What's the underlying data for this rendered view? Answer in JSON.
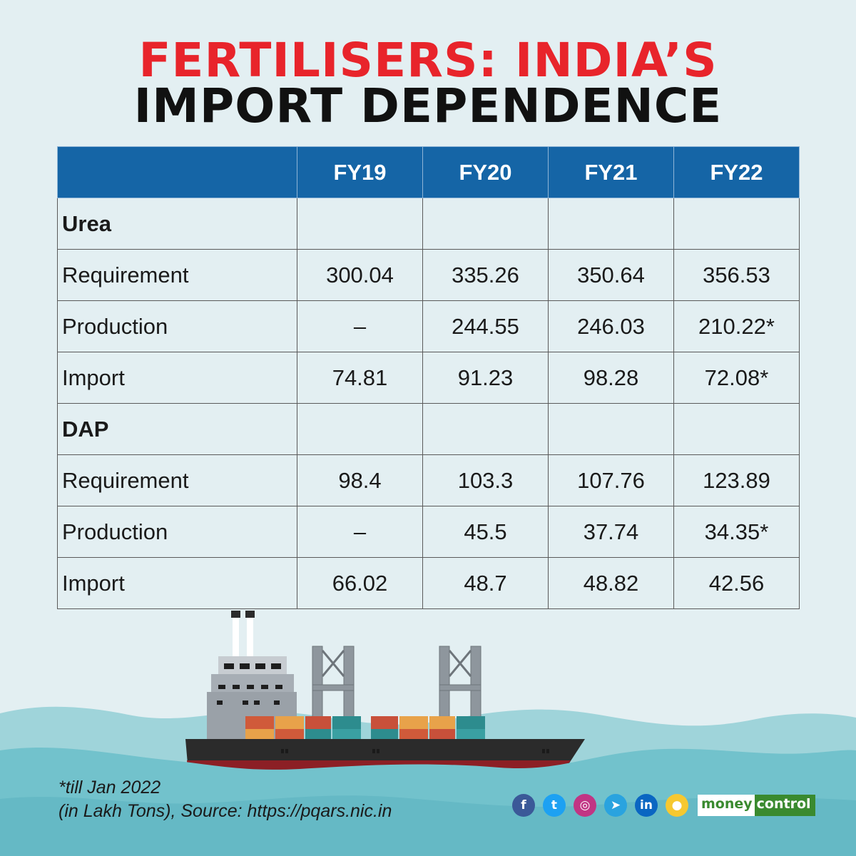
{
  "title": {
    "line1": "FERTILISERS: INDIA’S",
    "line2": "IMPORT DEPENDENCE"
  },
  "table": {
    "headers": [
      "",
      "FY19",
      "FY20",
      "FY21",
      "FY22"
    ],
    "rows": [
      {
        "section": true,
        "label": "Urea",
        "values": [
          "",
          "",
          "",
          ""
        ]
      },
      {
        "section": false,
        "label": "Requirement",
        "values": [
          "300.04",
          "335.26",
          "350.64",
          "356.53"
        ]
      },
      {
        "section": false,
        "label": "Production",
        "values": [
          "–",
          "244.55",
          "246.03",
          "210.22*"
        ]
      },
      {
        "section": false,
        "label": "Import",
        "values": [
          "74.81",
          "91.23",
          "98.28",
          "72.08*"
        ]
      },
      {
        "section": true,
        "label": "DAP",
        "values": [
          "",
          "",
          "",
          ""
        ]
      },
      {
        "section": false,
        "label": "Requirement",
        "values": [
          "98.4",
          "103.3",
          "107.76",
          "123.89"
        ]
      },
      {
        "section": false,
        "label": "Production",
        "values": [
          "–",
          "45.5",
          "37.74",
          "34.35*"
        ]
      },
      {
        "section": false,
        "label": "Import",
        "values": [
          "66.02",
          "48.7",
          "48.82",
          "42.56"
        ]
      }
    ]
  },
  "footnotes": {
    "note1": "*till Jan 2022",
    "note2": "(in Lakh Tons), Source: https://pqars.nic.in"
  },
  "social": [
    {
      "name": "facebook-icon",
      "glyph": "f",
      "color": "#3b5998"
    },
    {
      "name": "twitter-icon",
      "glyph": "t",
      "color": "#1da1f2"
    },
    {
      "name": "instagram-icon",
      "glyph": "◎",
      "color": "#c13584"
    },
    {
      "name": "telegram-icon",
      "glyph": "➤",
      "color": "#2aa3df"
    },
    {
      "name": "linkedin-icon",
      "glyph": "in",
      "color": "#0a66c2"
    },
    {
      "name": "koo-icon",
      "glyph": "●",
      "color": "#f6c830"
    }
  ],
  "brand": {
    "part1": "money",
    "part2": "control"
  },
  "colors": {
    "title_red": "#e8242b",
    "header_blue": "#1565a6",
    "background": "#e3eff2",
    "sea": "#72c2cc",
    "brand_green": "#3a8a2f"
  }
}
